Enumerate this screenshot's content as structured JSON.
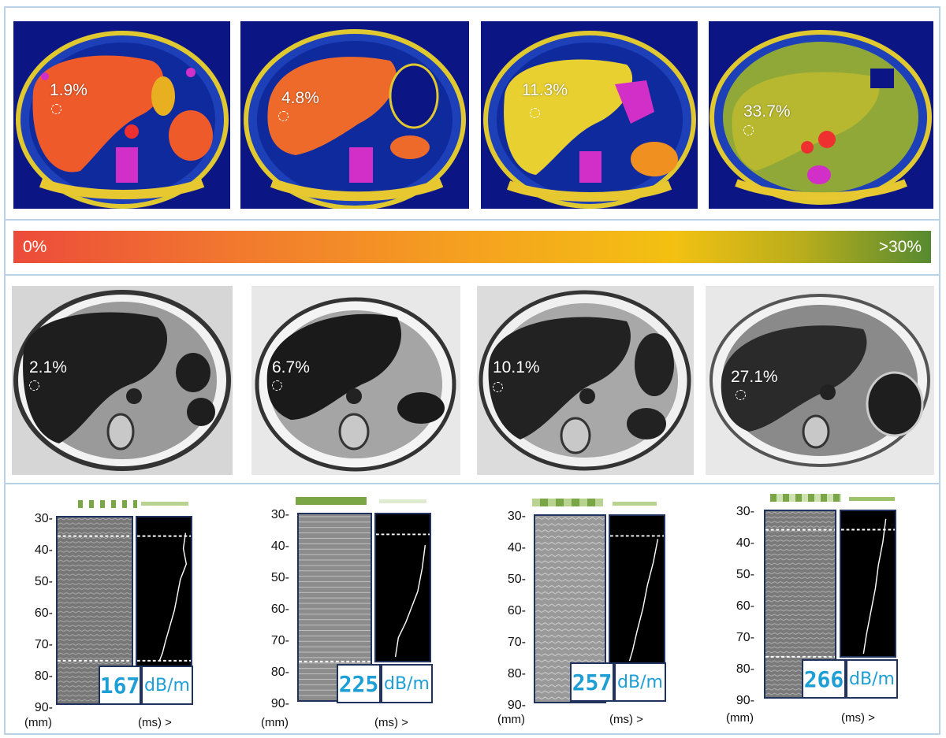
{
  "pdff_maps": [
    {
      "label": "1.9%"
    },
    {
      "label": "4.8%"
    },
    {
      "label": "11.3%"
    },
    {
      "label": "33.7%"
    }
  ],
  "colorbar": {
    "min_label": "0%",
    "max_label": ">30%",
    "colors": [
      "#ec4b3a",
      "#f5a21f",
      "#f3c112",
      "#568a31"
    ]
  },
  "mri_images": [
    {
      "label": "2.1%"
    },
    {
      "label": "6.7%"
    },
    {
      "label": "10.1%"
    },
    {
      "label": "27.1%"
    }
  ],
  "cap": {
    "depth_ticks": [
      "30-",
      "40-",
      "50-",
      "60-",
      "70-",
      "80-",
      "90-"
    ],
    "depth_unit": "(mm)",
    "time_unit": "(ms) >",
    "measurements": [
      {
        "value": "167",
        "unit": "dB/m"
      },
      {
        "value": "225",
        "unit": "dB/m"
      },
      {
        "value": "257",
        "unit": "dB/m"
      },
      {
        "value": "266",
        "unit": "dB/m"
      }
    ],
    "readout_color": "#1d9fd6"
  }
}
